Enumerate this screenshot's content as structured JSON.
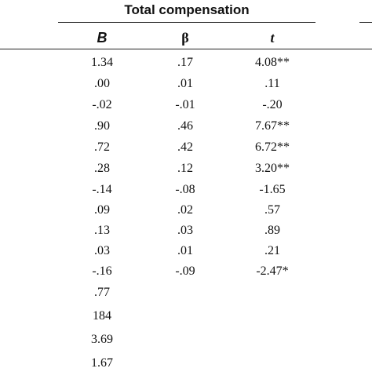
{
  "table": {
    "group_header": "Total compensation",
    "columns": [
      "B",
      "β",
      "t"
    ],
    "rows": [
      {
        "B": "1.34",
        "beta": ".17",
        "t": "4.08**"
      },
      {
        "B": ".00",
        "beta": ".01",
        "t": ".11"
      },
      {
        "B": "-.02",
        "beta": "-.01",
        "t": "-.20"
      },
      {
        "B": ".90",
        "beta": ".46",
        "t": "7.67**"
      },
      {
        "B": ".72",
        "beta": ".42",
        "t": "6.72**"
      },
      {
        "B": ".28",
        "beta": ".12",
        "t": "3.20**"
      },
      {
        "B": "-.14",
        "beta": "-.08",
        "t": "-1.65"
      },
      {
        "B": ".09",
        "beta": ".02",
        "t": ".57"
      },
      {
        "B": ".13",
        "beta": ".03",
        "t": ".89"
      },
      {
        "B": ".03",
        "beta": ".01",
        "t": ".21"
      },
      {
        "B": "-.16",
        "beta": "-.09",
        "t": "-2.47*"
      },
      {
        "B": ".77",
        "beta": "",
        "t": ""
      },
      {
        "B": "184",
        "beta": "",
        "t": ""
      },
      {
        "B": "3.69",
        "beta": "",
        "t": ""
      },
      {
        "B": "1.67",
        "beta": "",
        "t": ""
      }
    ]
  }
}
